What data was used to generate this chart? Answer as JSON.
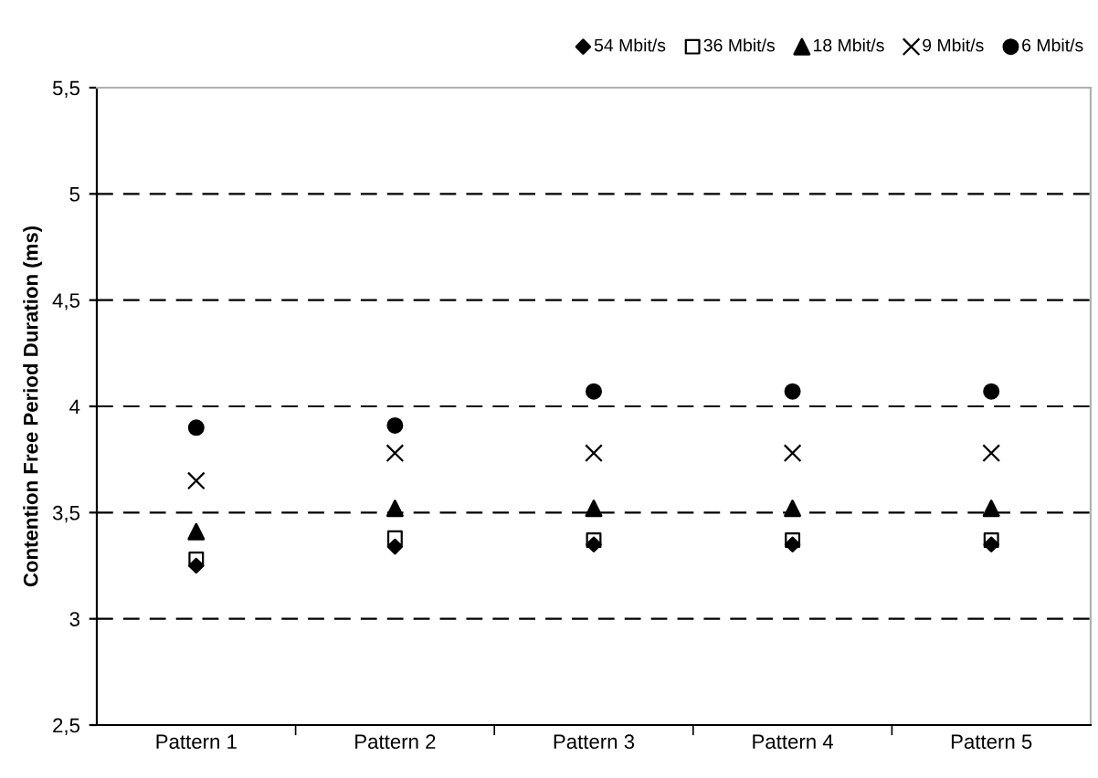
{
  "chart_data": {
    "type": "scatter",
    "ylabel": "Contention Free Period Duration (ms)",
    "categories": [
      "Pattern 1",
      "Pattern 2",
      "Pattern 3",
      "Pattern 4",
      "Pattern 5"
    ],
    "series": [
      {
        "name": "54 Mbit/s",
        "color": "#000000",
        "marker": "diamond",
        "values": [
          3.25,
          3.34,
          3.35,
          3.35,
          3.35
        ]
      },
      {
        "name": "36 Mbit/s",
        "color": "#000000",
        "marker": "square",
        "values": [
          3.28,
          3.38,
          3.37,
          3.37,
          3.37
        ]
      },
      {
        "name": "18 Mbit/s",
        "color": "#000000",
        "marker": "triangle",
        "values": [
          3.41,
          3.52,
          3.52,
          3.52,
          3.52
        ]
      },
      {
        "name": "9 Mbit/s",
        "color": "#000000",
        "marker": "cross",
        "values": [
          3.65,
          3.78,
          3.78,
          3.78,
          3.78
        ]
      },
      {
        "name": "6 Mbit/s",
        "color": "#000000",
        "marker": "circle",
        "values": [
          3.9,
          3.91,
          4.07,
          4.07,
          4.07
        ]
      }
    ],
    "ylim": [
      2.5,
      5.5
    ],
    "yticks": [
      {
        "value": 2.5,
        "label": "2,5"
      },
      3,
      {
        "value": 3.5,
        "label": "3,5"
      },
      4,
      {
        "value": 4.5,
        "label": "4,5"
      },
      5,
      {
        "value": 5.5,
        "label": "5,5"
      }
    ],
    "grid": "y",
    "legend": "top right"
  }
}
